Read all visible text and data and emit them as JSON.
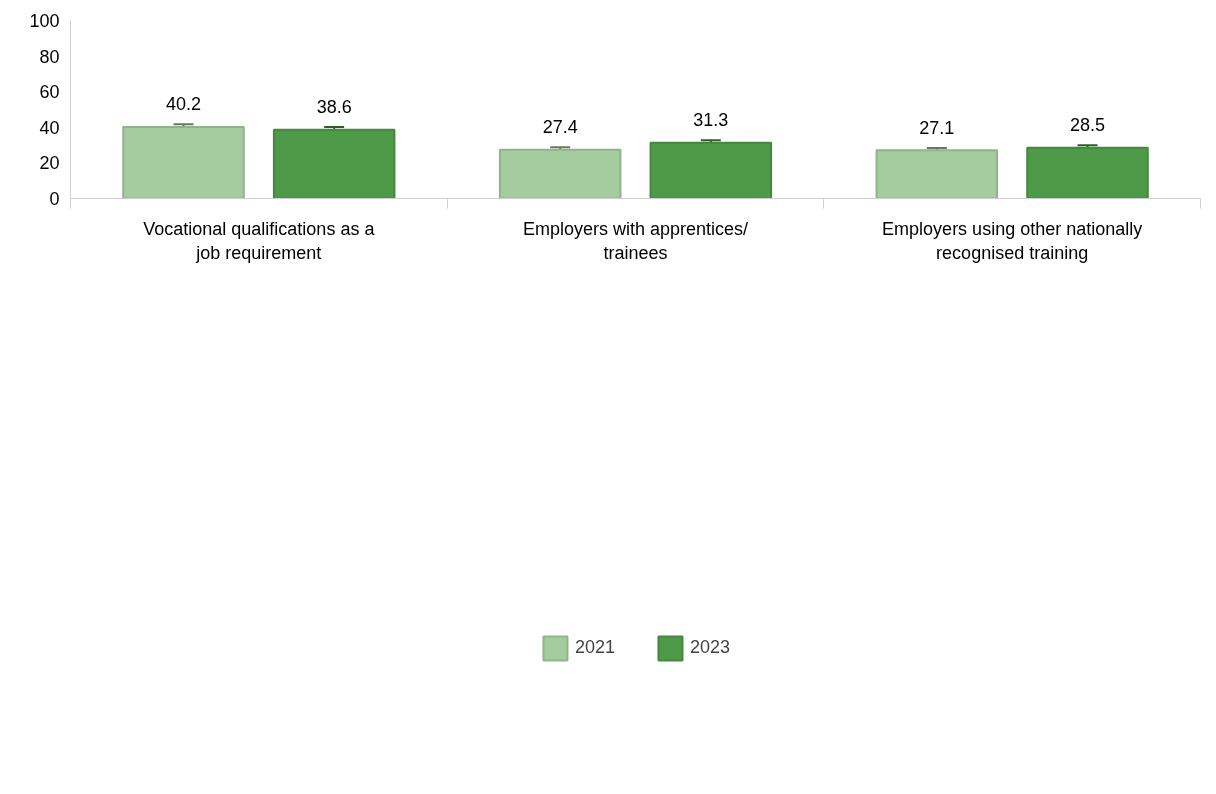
{
  "chart_data": {
    "type": "bar",
    "categories": [
      "Vocational qualifications as a job requirement",
      "Employers with apprentices/ trainees",
      "Employers using other nationally recognised training"
    ],
    "series": [
      {
        "name": "2021",
        "color": "#a5cc9e",
        "values": [
          40.2,
          27.4,
          27.1
        ],
        "errors": [
          1.5,
          1.4,
          1.3
        ]
      },
      {
        "name": "2023",
        "color": "#4f9a49",
        "values": [
          38.6,
          31.3,
          28.5
        ],
        "errors": [
          1.5,
          1.4,
          1.4
        ]
      }
    ],
    "ylim": [
      0,
      100
    ],
    "yticks": [
      0,
      20,
      40,
      60,
      80,
      100
    ],
    "grid": false,
    "legend": "bottom",
    "data_labels": true
  }
}
